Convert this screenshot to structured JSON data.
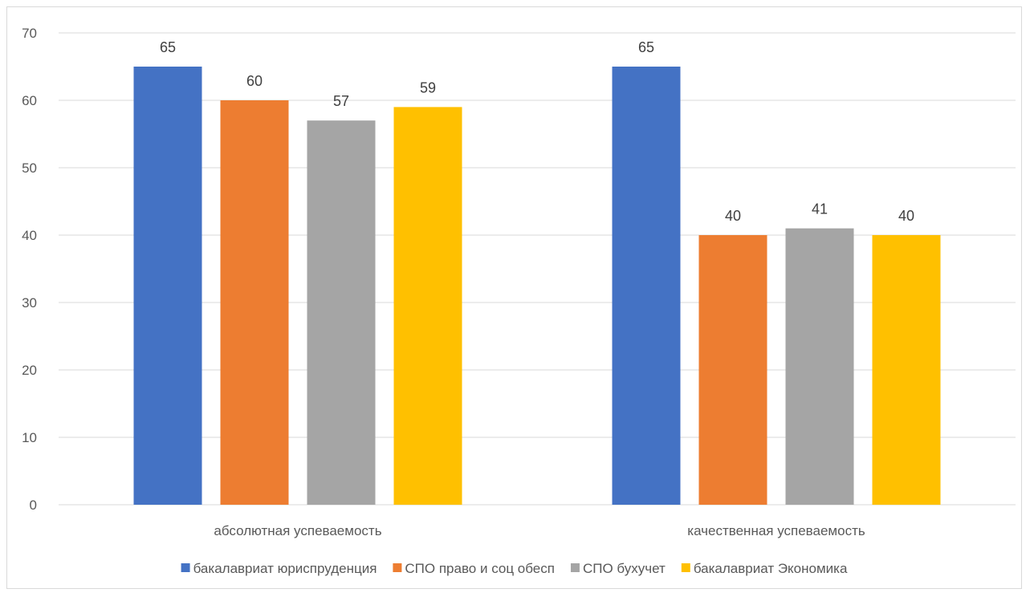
{
  "chart_data": {
    "type": "bar",
    "title": "",
    "xlabel": "",
    "ylabel": "",
    "categories": [
      "абсолютная успеваемость",
      "качественная успеваемость"
    ],
    "series": [
      {
        "name": "бакалавриат юриспруденция",
        "color": "#4472C4",
        "values": [
          65,
          65
        ]
      },
      {
        "name": "СПО право и соц обесп",
        "color": "#ED7D31",
        "values": [
          60,
          40
        ]
      },
      {
        "name": "СПО бухучет",
        "color": "#A5A5A5",
        "values": [
          57,
          41
        ]
      },
      {
        "name": "бакалавриат Экономика",
        "color": "#FFC000",
        "values": [
          59,
          40
        ]
      }
    ],
    "ylim": [
      0,
      70
    ],
    "yticks": [
      0,
      10,
      20,
      30,
      40,
      50,
      60,
      70
    ],
    "grid": true,
    "legend_position": "bottom",
    "data_labels": true
  }
}
